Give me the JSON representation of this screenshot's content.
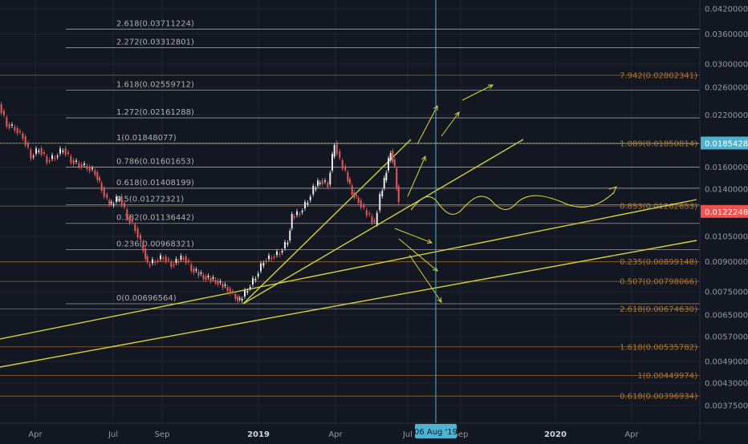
{
  "chart_data": {
    "type": "line",
    "pair_price_scale": "log",
    "x_axis_labels": [
      "Apr",
      "Jul",
      "Sep",
      "2019",
      "Apr",
      "Jul",
      "Sep",
      "2020",
      "Apr"
    ],
    "x_axis_bold": [
      "2019",
      "2020"
    ],
    "y_axis_ticks": [
      "0.04200000",
      "0.03600000",
      "0.03000000",
      "0.02600000",
      "0.02200000",
      "0.01600000",
      "0.01400000",
      "0.01050000",
      "0.00900000",
      "0.00750000",
      "0.00650000",
      "0.00570000",
      "0.00490000",
      "0.00430000",
      "0.00375000"
    ],
    "current_price": "0.01222486",
    "crosshair_price": "0.01854284",
    "crosshair_date": "06 Aug '19",
    "fib_left": [
      {
        "label": "2.618(0.03711224)",
        "price": 0.03711224
      },
      {
        "label": "2.272(0.03312801)",
        "price": 0.03312801
      },
      {
        "label": "1.618(0.02559712)",
        "price": 0.02559712
      },
      {
        "label": "1.272(0.02161288)",
        "price": 0.02161288
      },
      {
        "label": "1(0.01848077)",
        "price": 0.01848077
      },
      {
        "label": "0.786(0.01601653)",
        "price": 0.01601653
      },
      {
        "label": "0.618(0.01408199)",
        "price": 0.01408199
      },
      {
        "label": "0.5(0.01272321)",
        "price": 0.01272321
      },
      {
        "label": "0.382(0.01136442)",
        "price": 0.01136442
      },
      {
        "label": "0.236(0.00968321)",
        "price": 0.00968321
      },
      {
        "label": "0(0.00696564)",
        "price": 0.00696564
      }
    ],
    "fib_right": [
      {
        "label": "7.942(0.02802341)",
        "price": 0.02802341
      },
      {
        "label": "1.089(0.01850814)",
        "price": 0.01850814
      },
      {
        "label": "0.853(0.01262653)",
        "price": 0.01262653
      },
      {
        "label": "0.235(0.00899148)",
        "price": 0.00899148
      },
      {
        "label": "0.507(0.00798066)",
        "price": 0.00798066
      },
      {
        "label": "2.618(0.00674630)",
        "price": 0.0067463
      },
      {
        "label": "1.618(0.00535782)",
        "price": 0.00535782
      },
      {
        "label": "1(0.00449974)",
        "price": 0.00449974
      },
      {
        "label": "0.618(0.00396934)",
        "price": 0.00396934
      }
    ],
    "grid": true,
    "colors": {
      "background": "#131722",
      "grid": "#1f2430",
      "fib_white": "#c8c8c8",
      "fib_orange": "#b5762a",
      "trendline": "#d4d23a",
      "candle_up": "#e8eae8",
      "candle_down": "#e05a5a",
      "crosshair": "#4fb3cf",
      "price_tag": "#ef5350",
      "axis_text": "#9598a1"
    }
  }
}
